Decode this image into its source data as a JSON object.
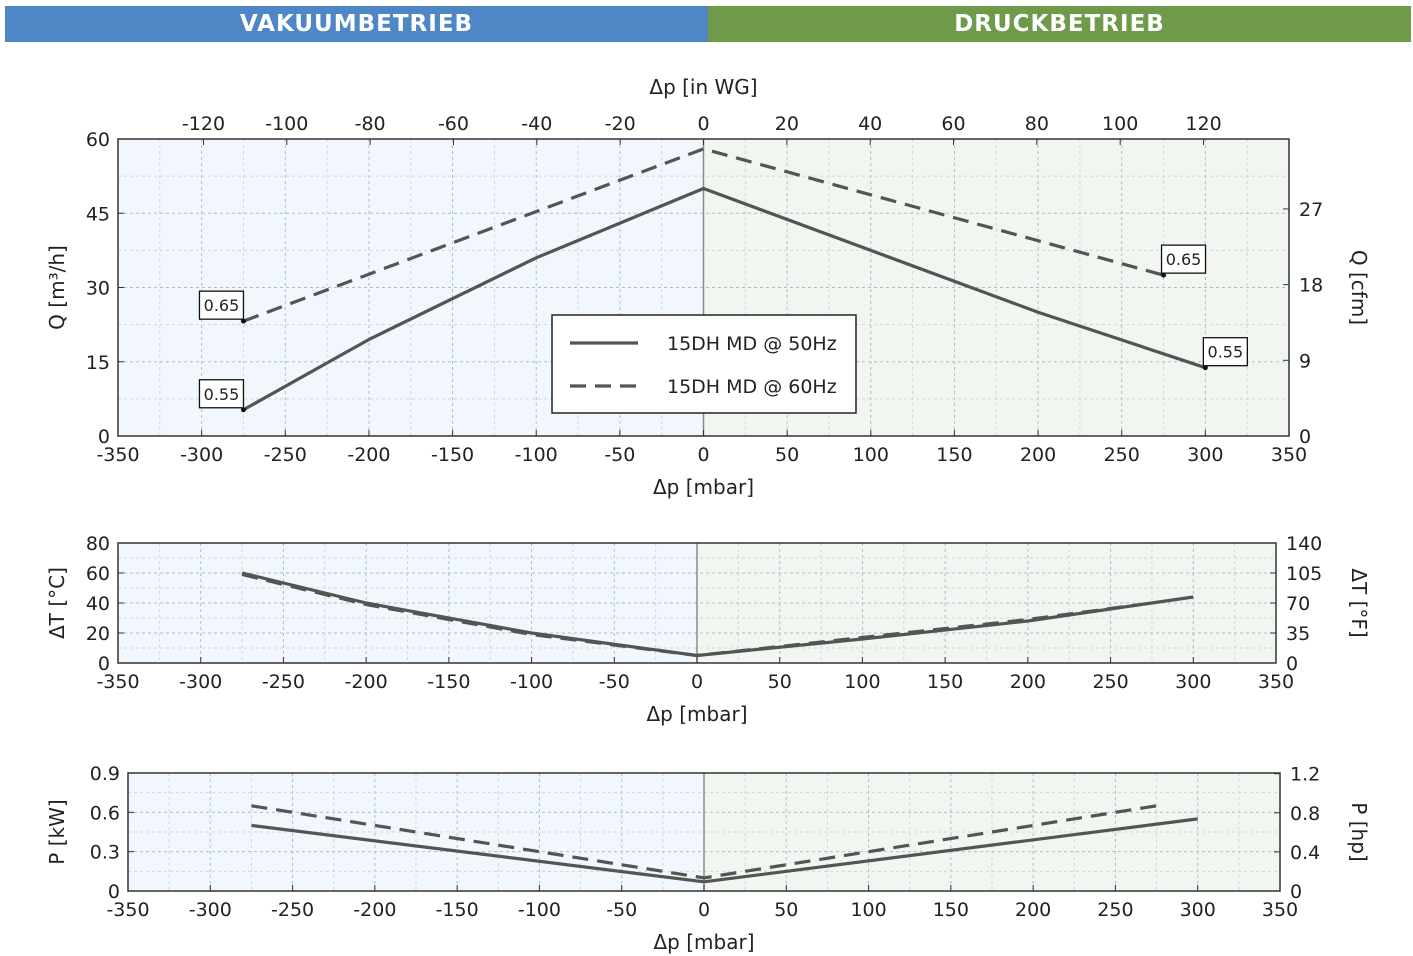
{
  "header": {
    "left_label": "VAKUUMBETRIEB",
    "right_label": "DRUCKBETRIEB",
    "left_color": "#4f86c6",
    "right_color": "#6f9a4a"
  },
  "chart_data": [
    {
      "type": "line",
      "xlabel": "Δp [mbar]",
      "ylabel": "Q [m³/h]",
      "x2label": "Δp [in WG]",
      "y2label": "Q [cfm]",
      "xlim": [
        -350,
        350
      ],
      "ylim": [
        0,
        60
      ],
      "xticks": [
        -350,
        -300,
        -250,
        -200,
        -150,
        -100,
        -50,
        0,
        50,
        100,
        150,
        200,
        250,
        300,
        350
      ],
      "yticks": [
        0,
        15,
        30,
        45,
        60
      ],
      "x2ticks": [
        -120,
        -100,
        -80,
        -60,
        -40,
        -20,
        0,
        20,
        40,
        60,
        80,
        100,
        120
      ],
      "y2ticks": [
        0,
        9,
        18,
        27
      ],
      "grid": true,
      "legend_position": "center",
      "series": [
        {
          "name": "15DH MD @ 50Hz",
          "style": "solid",
          "x": [
            -275,
            -200,
            -100,
            0,
            100,
            200,
            300
          ],
          "y": [
            5.3,
            19.5,
            36,
            50,
            37.5,
            25,
            13.8
          ]
        },
        {
          "name": "15DH MD @ 60Hz",
          "style": "dashed",
          "x": [
            -275,
            0,
            275
          ],
          "y": [
            23.2,
            58,
            32.5
          ]
        }
      ],
      "annotations": [
        {
          "x": -275,
          "y": 23.2,
          "text": "0.65"
        },
        {
          "x": -275,
          "y": 5.3,
          "text": "0.55"
        },
        {
          "x": 275,
          "y": 32.5,
          "text": "0.65"
        },
        {
          "x": 300,
          "y": 13.8,
          "text": "0.55"
        }
      ]
    },
    {
      "type": "line",
      "xlabel": "Δp [mbar]",
      "ylabel": "ΔT [°C]",
      "y2label": "ΔT [°F]",
      "xlim": [
        -350,
        350
      ],
      "ylim": [
        0,
        80
      ],
      "xticks": [
        -350,
        -300,
        -250,
        -200,
        -150,
        -100,
        -50,
        0,
        50,
        100,
        150,
        200,
        250,
        300,
        350
      ],
      "yticks": [
        0,
        20,
        40,
        60,
        80
      ],
      "y2ticks": [
        0,
        35,
        70,
        105,
        140
      ],
      "grid": true,
      "series": [
        {
          "name": "15DH MD @ 50Hz",
          "style": "solid",
          "x": [
            -275,
            -200,
            -100,
            0,
            100,
            200,
            300
          ],
          "y": [
            60,
            40,
            20,
            5,
            16,
            28,
            44
          ]
        },
        {
          "name": "15DH MD @ 60Hz",
          "style": "dashed",
          "x": [
            -275,
            -200,
            -100,
            0,
            100,
            200,
            275
          ],
          "y": [
            59,
            39,
            19,
            5,
            17,
            29,
            40
          ]
        }
      ]
    },
    {
      "type": "line",
      "xlabel": "Δp [mbar]",
      "ylabel": "P [kW]",
      "y2label": "P [hp]",
      "xlim": [
        -350,
        350
      ],
      "ylim": [
        0,
        0.9
      ],
      "xticks": [
        -350,
        -300,
        -250,
        -200,
        -150,
        -100,
        -50,
        0,
        50,
        100,
        150,
        200,
        250,
        300,
        350
      ],
      "yticks": [
        0,
        0.3,
        0.6,
        0.9
      ],
      "y2ticks": [
        0,
        0.4,
        0.8,
        1.2
      ],
      "grid": true,
      "series": [
        {
          "name": "15DH MD @ 50Hz",
          "style": "solid",
          "x": [
            -275,
            0,
            300
          ],
          "y": [
            0.5,
            0.07,
            0.55
          ]
        },
        {
          "name": "15DH MD @ 60Hz",
          "style": "dashed",
          "x": [
            -275,
            0,
            275
          ],
          "y": [
            0.65,
            0.1,
            0.65
          ]
        }
      ]
    }
  ]
}
